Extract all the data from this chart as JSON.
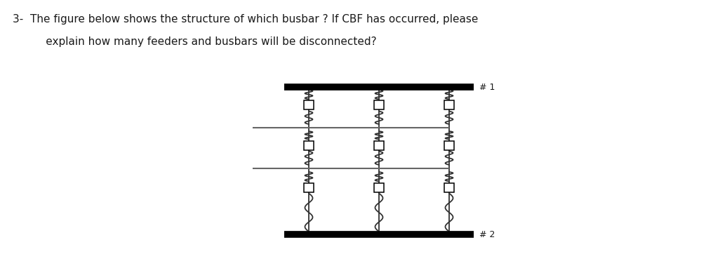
{
  "title_line1": "3-  The figure below shows the structure of which busbar ? If CBF has occurred, please",
  "title_line2": "      explain how many feeders and busbars will be disconnected?",
  "bg_color": "#ffffff",
  "text_color": "#1a1a1a",
  "busbar_color": "#000000",
  "busbar_lw": 7,
  "feeder_color": "#333333",
  "feeder_lw": 1.3,
  "wavy_color": "#333333",
  "wavy_lw": 1.3,
  "cb_color": "#ffffff",
  "cb_edge_color": "#000000",
  "cb_edge_lw": 1.1,
  "hline_color": "#666666",
  "hline_lw": 1.5,
  "label1": "# 1",
  "label2": "# 2",
  "label_fontsize": 9,
  "title_fontsize": 11
}
